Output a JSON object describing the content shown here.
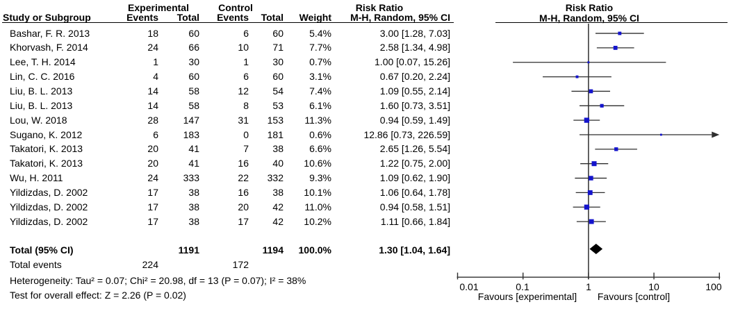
{
  "header": {
    "group_experimental": "Experimental",
    "group_control": "Control",
    "risk_ratio_left": "Risk Ratio",
    "risk_ratio_right": "Risk Ratio",
    "study": "Study or Subgroup",
    "events": "Events",
    "total": "Total",
    "events2": "Events",
    "total2": "Total",
    "weight": "Weight",
    "mh_left": "M-H, Random, 95% CI",
    "mh_right": "M-H, Random, 95% CI"
  },
  "rows": [
    {
      "study": "Bashar, F. R. 2013",
      "e_events": "18",
      "e_total": "60",
      "c_events": "6",
      "c_total": "60",
      "weight": "5.4%",
      "rr": "3.00 [1.28, 7.03]"
    },
    {
      "study": "Khorvash, F. 2014",
      "e_events": "24",
      "e_total": "66",
      "c_events": "10",
      "c_total": "71",
      "weight": "7.7%",
      "rr": "2.58 [1.34, 4.98]"
    },
    {
      "study": "Lee, T. H. 2014",
      "e_events": "1",
      "e_total": "30",
      "c_events": "1",
      "c_total": "30",
      "weight": "0.7%",
      "rr": "1.00 [0.07, 15.26]"
    },
    {
      "study": "Lin, C. C. 2016",
      "e_events": "4",
      "e_total": "60",
      "c_events": "6",
      "c_total": "60",
      "weight": "3.1%",
      "rr": "0.67 [0.20, 2.24]"
    },
    {
      "study": "Liu, B. L. 2013",
      "e_events": "14",
      "e_total": "58",
      "c_events": "12",
      "c_total": "54",
      "weight": "7.4%",
      "rr": "1.09 [0.55, 2.14]"
    },
    {
      "study": "Liu, B. L. 2013",
      "e_events": "14",
      "e_total": "58",
      "c_events": "8",
      "c_total": "53",
      "weight": "6.1%",
      "rr": "1.60 [0.73, 3.51]"
    },
    {
      "study": "Lou, W. 2018",
      "e_events": "28",
      "e_total": "147",
      "c_events": "31",
      "c_total": "153",
      "weight": "11.3%",
      "rr": "0.94 [0.59, 1.49]"
    },
    {
      "study": "Sugano, K. 2012",
      "e_events": "6",
      "e_total": "183",
      "c_events": "0",
      "c_total": "181",
      "weight": "0.6%",
      "rr": "12.86 [0.73, 226.59]"
    },
    {
      "study": "Takatori, K. 2013",
      "e_events": "20",
      "e_total": "41",
      "c_events": "7",
      "c_total": "38",
      "weight": "6.6%",
      "rr": "2.65 [1.26, 5.54]"
    },
    {
      "study": "Takatori, K. 2013",
      "e_events": "20",
      "e_total": "41",
      "c_events": "16",
      "c_total": "40",
      "weight": "10.6%",
      "rr": "1.22 [0.75, 2.00]"
    },
    {
      "study": "Wu, H. 2011",
      "e_events": "24",
      "e_total": "333",
      "c_events": "22",
      "c_total": "332",
      "weight": "9.3%",
      "rr": "1.09 [0.62, 1.90]"
    },
    {
      "study": "Yildizdas, D. 2002",
      "e_events": "17",
      "e_total": "38",
      "c_events": "16",
      "c_total": "38",
      "weight": "10.1%",
      "rr": "1.06 [0.64, 1.78]"
    },
    {
      "study": "Yildizdas, D. 2002",
      "e_events": "17",
      "e_total": "38",
      "c_events": "20",
      "c_total": "42",
      "weight": "11.0%",
      "rr": "0.94 [0.58, 1.51]"
    },
    {
      "study": "Yildizdas, D. 2002",
      "e_events": "17",
      "e_total": "38",
      "c_events": "17",
      "c_total": "42",
      "weight": "10.2%",
      "rr": "1.11 [0.66, 1.84]"
    }
  ],
  "totals": {
    "label": "Total (95% CI)",
    "e_total": "1191",
    "c_total": "1194",
    "weight": "100.0%",
    "rr": "1.30 [1.04, 1.64]",
    "events_label": "Total events",
    "e_events": "224",
    "c_events": "172"
  },
  "footnotes": {
    "heterogeneity": "Heterogeneity: Tau² = 0.07; Chi² = 20.98, df = 13 (P = 0.07); I² = 38%",
    "overall_effect": "Test for overall effect: Z = 2.26 (P = 0.02)"
  },
  "chart_data": {
    "type": "forest",
    "effect_measure": "Risk Ratio (M-H, Random, 95% CI)",
    "x_scale": "log10",
    "xlim": [
      0.01,
      100
    ],
    "ticks": [
      "0.01",
      "0.1",
      "1",
      "10",
      "100"
    ],
    "null_line": 1,
    "favours_left": "Favours [experimental]",
    "favours_right": "Favours [control]",
    "marker_color": "#1414cc",
    "line_color": "#2e2e2e",
    "diamond_color": "#000000",
    "studies": [
      {
        "name": "Bashar, F. R. 2013",
        "rr": 3.0,
        "ci": [
          1.28,
          7.03
        ],
        "weight": 5.4
      },
      {
        "name": "Khorvash, F. 2014",
        "rr": 2.58,
        "ci": [
          1.34,
          4.98
        ],
        "weight": 7.7
      },
      {
        "name": "Lee, T. H. 2014",
        "rr": 1.0,
        "ci": [
          0.07,
          15.26
        ],
        "weight": 0.7
      },
      {
        "name": "Lin, C. C. 2016",
        "rr": 0.67,
        "ci": [
          0.2,
          2.24
        ],
        "weight": 3.1
      },
      {
        "name": "Liu, B. L. 2013",
        "rr": 1.09,
        "ci": [
          0.55,
          2.14
        ],
        "weight": 7.4
      },
      {
        "name": "Liu, B. L. 2013",
        "rr": 1.6,
        "ci": [
          0.73,
          3.51
        ],
        "weight": 6.1
      },
      {
        "name": "Lou, W. 2018",
        "rr": 0.94,
        "ci": [
          0.59,
          1.49
        ],
        "weight": 11.3
      },
      {
        "name": "Sugano, K. 2012",
        "rr": 12.86,
        "ci": [
          0.73,
          226.59
        ],
        "weight": 0.6
      },
      {
        "name": "Takatori, K. 2013",
        "rr": 2.65,
        "ci": [
          1.26,
          5.54
        ],
        "weight": 6.6
      },
      {
        "name": "Takatori, K. 2013",
        "rr": 1.22,
        "ci": [
          0.75,
          2.0
        ],
        "weight": 10.6
      },
      {
        "name": "Wu, H. 2011",
        "rr": 1.09,
        "ci": [
          0.62,
          1.9
        ],
        "weight": 9.3
      },
      {
        "name": "Yildizdas, D. 2002",
        "rr": 1.06,
        "ci": [
          0.64,
          1.78
        ],
        "weight": 10.1
      },
      {
        "name": "Yildizdas, D. 2002",
        "rr": 0.94,
        "ci": [
          0.58,
          1.51
        ],
        "weight": 11.0
      },
      {
        "name": "Yildizdas, D. 2002",
        "rr": 1.11,
        "ci": [
          0.66,
          1.84
        ],
        "weight": 10.2
      }
    ],
    "total": {
      "rr": 1.3,
      "ci": [
        1.04,
        1.64
      ]
    }
  }
}
